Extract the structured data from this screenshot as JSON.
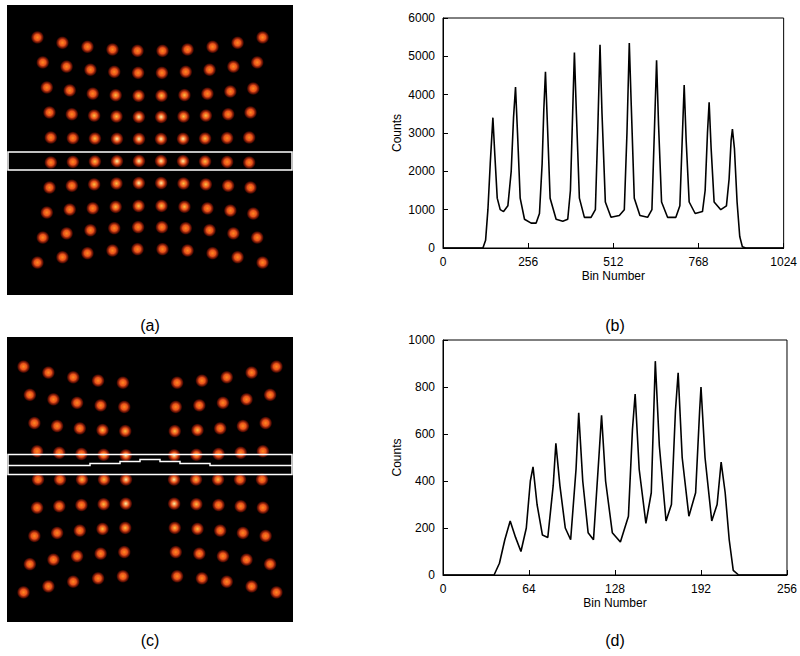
{
  "chart_data": [
    {
      "type": "line",
      "title": "(b)",
      "xlabel": "Bin Number",
      "ylabel": "Counts",
      "color": "#000000",
      "xlim": [
        0,
        1024
      ],
      "xticks": [
        0,
        256,
        512,
        768,
        1024
      ],
      "ylim": [
        0,
        6000
      ],
      "yticks": [
        0,
        1000,
        2000,
        3000,
        4000,
        5000,
        6000
      ],
      "x": [
        0,
        120,
        128,
        135,
        142,
        150,
        156,
        163,
        172,
        182,
        195,
        205,
        212,
        218,
        224,
        232,
        245,
        265,
        280,
        290,
        298,
        303,
        308,
        314,
        322,
        340,
        360,
        375,
        383,
        390,
        395,
        401,
        410,
        425,
        445,
        458,
        465,
        472,
        478,
        488,
        505,
        530,
        545,
        553,
        560,
        566,
        575,
        592,
        615,
        628,
        636,
        642,
        648,
        657,
        675,
        700,
        712,
        719,
        725,
        731,
        740,
        758,
        780,
        788,
        795,
        800,
        806,
        815,
        835,
        852,
        860,
        866,
        870,
        876,
        884,
        892,
        900,
        910,
        1024
      ],
      "values": [
        0,
        0,
        200,
        1000,
        2200,
        3400,
        2400,
        1300,
        1000,
        950,
        1100,
        2000,
        3400,
        4200,
        3000,
        1300,
        750,
        650,
        650,
        900,
        2200,
        3600,
        4600,
        3200,
        1300,
        750,
        700,
        750,
        1500,
        3600,
        5100,
        3500,
        1300,
        800,
        800,
        1000,
        3000,
        5300,
        3500,
        1200,
        800,
        850,
        1000,
        3000,
        5350,
        3700,
        1300,
        850,
        800,
        1000,
        3200,
        4900,
        3200,
        1200,
        800,
        800,
        1100,
        2800,
        4250,
        2800,
        1200,
        900,
        950,
        1500,
        3000,
        3800,
        2600,
        1200,
        1000,
        1100,
        1800,
        2800,
        3100,
        2600,
        1200,
        300,
        30,
        0,
        0
      ]
    },
    {
      "type": "line",
      "title": "(d)",
      "xlabel": "Bin Number",
      "ylabel": "Counts",
      "color": "#000000",
      "xlim": [
        0,
        256
      ],
      "xticks": [
        0,
        64,
        128,
        192,
        256
      ],
      "ylim": [
        0,
        1000
      ],
      "yticks": [
        0,
        200,
        400,
        600,
        800,
        1000
      ],
      "x": [
        0,
        38,
        42,
        46,
        50,
        54,
        58,
        62,
        65,
        67,
        70,
        74,
        78,
        82,
        84,
        87,
        91,
        95,
        99,
        101,
        104,
        108,
        112,
        116,
        118,
        121,
        126,
        132,
        138,
        141,
        143,
        146,
        151,
        155,
        158,
        161,
        166,
        170,
        173,
        175,
        178,
        183,
        188,
        191,
        192,
        195,
        200,
        204,
        207,
        210,
        213,
        216,
        220,
        256
      ],
      "values": [
        0,
        0,
        50,
        150,
        230,
        160,
        100,
        200,
        400,
        460,
        300,
        170,
        160,
        380,
        560,
        380,
        200,
        150,
        450,
        690,
        400,
        180,
        150,
        500,
        680,
        400,
        180,
        140,
        250,
        620,
        770,
        450,
        220,
        350,
        910,
        550,
        230,
        300,
        700,
        860,
        500,
        250,
        350,
        700,
        800,
        500,
        230,
        300,
        480,
        350,
        150,
        20,
        0,
        0
      ]
    }
  ],
  "images": [
    {
      "title": "(a)"
    },
    {
      "title": "(c)"
    }
  ]
}
